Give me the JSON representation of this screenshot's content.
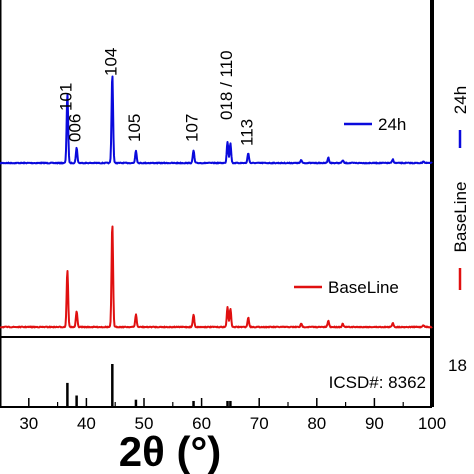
{
  "chart_data": {
    "type": "line",
    "xlabel": "2θ (°)",
    "xlim": [
      25,
      100
    ],
    "xticks": [
      30,
      40,
      50,
      60,
      70,
      80,
      90,
      100
    ],
    "xtick_labels": [
      "30",
      "40",
      "50",
      "60",
      "70",
      "80",
      "90",
      "100"
    ],
    "grid": false,
    "peak_labels": [
      {
        "text": "101",
        "x": 36.7
      },
      {
        "text": "006",
        "x": 38.3
      },
      {
        "text": "104",
        "x": 44.5
      },
      {
        "text": "105",
        "x": 48.6
      },
      {
        "text": "107",
        "x": 58.6
      },
      {
        "text": "018 / 110",
        "x": 64.6
      },
      {
        "text": "113",
        "x": 68.1
      }
    ],
    "series": [
      {
        "name": "24h",
        "color": "#0a0adc",
        "peaks": [
          {
            "x": 36.7,
            "h": 0.78
          },
          {
            "x": 38.3,
            "h": 0.17
          },
          {
            "x": 44.5,
            "h": 1.0
          },
          {
            "x": 48.6,
            "h": 0.14
          },
          {
            "x": 58.6,
            "h": 0.14
          },
          {
            "x": 64.5,
            "h": 0.24
          },
          {
            "x": 65.0,
            "h": 0.22
          },
          {
            "x": 68.1,
            "h": 0.11
          },
          {
            "x": 77.3,
            "h": 0.03
          },
          {
            "x": 82.0,
            "h": 0.06
          },
          {
            "x": 84.5,
            "h": 0.03
          },
          {
            "x": 93.2,
            "h": 0.04
          },
          {
            "x": 98.5,
            "h": 0.02
          }
        ]
      },
      {
        "name": "BaseLine",
        "color": "#e01010",
        "peaks": [
          {
            "x": 36.7,
            "h": 0.55
          },
          {
            "x": 38.3,
            "h": 0.15
          },
          {
            "x": 44.5,
            "h": 1.0
          },
          {
            "x": 48.6,
            "h": 0.12
          },
          {
            "x": 58.6,
            "h": 0.12
          },
          {
            "x": 64.5,
            "h": 0.19
          },
          {
            "x": 65.0,
            "h": 0.18
          },
          {
            "x": 68.1,
            "h": 0.09
          },
          {
            "x": 77.3,
            "h": 0.03
          },
          {
            "x": 82.0,
            "h": 0.06
          },
          {
            "x": 84.5,
            "h": 0.03
          },
          {
            "x": 93.2,
            "h": 0.04
          },
          {
            "x": 98.5,
            "h": 0.02
          }
        ]
      }
    ],
    "reference": {
      "label": "ICSD#: 8362",
      "side_label": "18",
      "color": "#000000",
      "lines": [
        {
          "x": 36.7,
          "h": 0.55
        },
        {
          "x": 38.3,
          "h": 0.25
        },
        {
          "x": 44.5,
          "h": 1.0
        },
        {
          "x": 48.6,
          "h": 0.15
        },
        {
          "x": 58.6,
          "h": 0.12
        },
        {
          "x": 64.5,
          "h": 0.12
        },
        {
          "x": 65.0,
          "h": 0.12
        }
      ]
    }
  }
}
